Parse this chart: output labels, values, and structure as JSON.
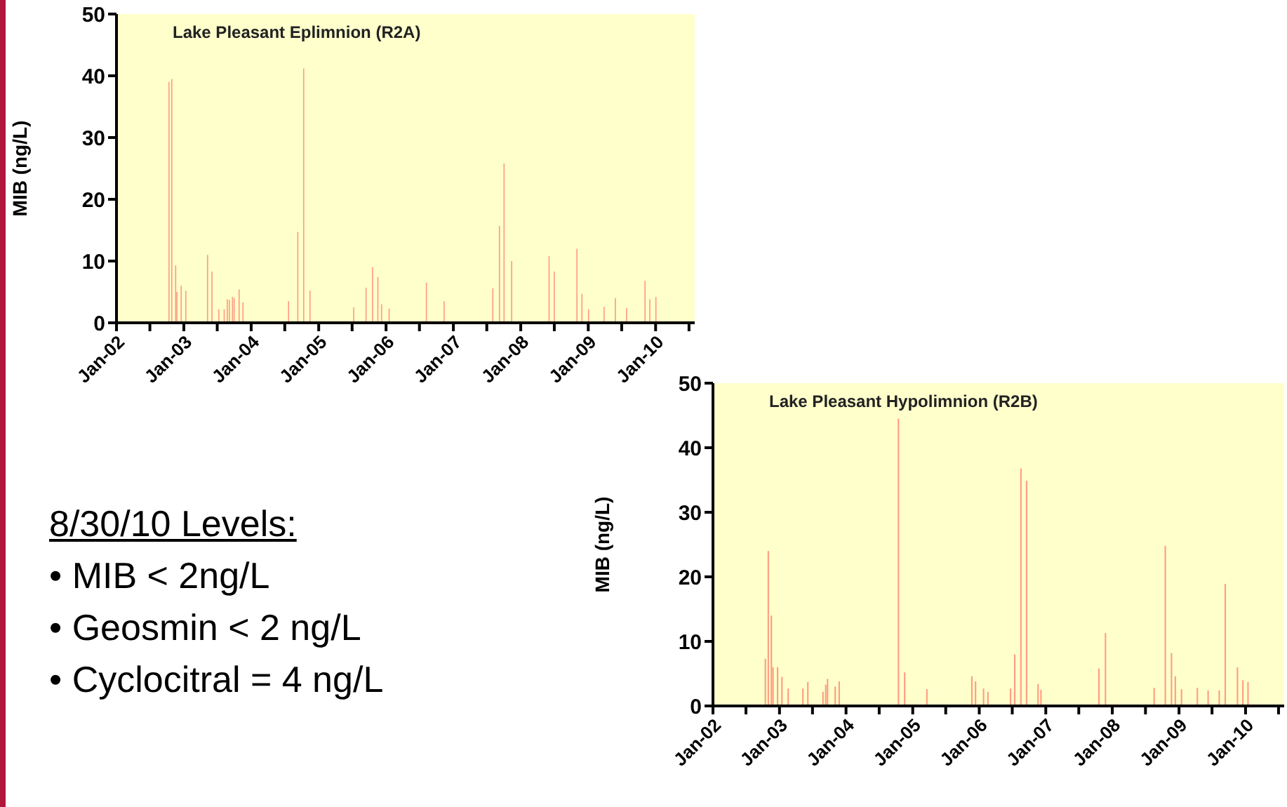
{
  "chart_data": [
    {
      "type": "bar",
      "title": "Lake Pleasant Eplimnion (R2A)",
      "ylabel": "MIB (ng/L)",
      "color": "#ff9c80",
      "x": [
        "2002-10-13",
        "2002-10-28",
        "2002-11-18",
        "2002-11-25",
        "2002-12-18",
        "2003-01-12",
        "2003-05-10",
        "2003-06-03",
        "2003-07-10",
        "2003-08-08",
        "2003-08-25",
        "2003-09-05",
        "2003-09-22",
        "2003-10-01",
        "2003-10-28",
        "2003-11-18",
        "2004-07-22",
        "2004-09-10",
        "2004-10-12",
        "2004-11-15",
        "2005-07-10",
        "2005-09-15",
        "2005-10-20",
        "2005-11-18",
        "2005-12-08",
        "2006-01-18",
        "2006-08-08",
        "2006-11-12",
        "2007-08-03",
        "2007-09-08",
        "2007-10-03",
        "2007-11-13",
        "2008-06-03",
        "2008-07-01",
        "2008-11-01",
        "2008-11-28",
        "2009-01-03",
        "2009-03-28",
        "2009-05-28",
        "2009-07-28",
        "2009-11-05",
        "2009-12-01",
        "2010-01-03"
      ],
      "values": [
        39,
        39.5,
        9.3,
        5,
        6,
        5.2,
        11,
        8.3,
        2.2,
        2.2,
        3.8,
        3.7,
        4.2,
        4,
        5.4,
        3.3,
        3.5,
        14.7,
        41.2,
        5.2,
        2.5,
        5.7,
        9,
        7.4,
        3,
        2.3,
        6.5,
        3.5,
        5.6,
        15.7,
        25.8,
        10,
        10.8,
        8.3,
        12,
        4.7,
        2.2,
        2.6,
        4,
        2.4,
        6.8,
        3.8,
        4.2
      ],
      "xlim": [
        "2002-01",
        "2010-08"
      ],
      "xticks": [
        {
          "value": "2002-01",
          "label": "Jan-02"
        },
        {
          "value": "2002-07",
          "label": null
        },
        {
          "value": "2003-01",
          "label": "Jan-03"
        },
        {
          "value": "2003-07",
          "label": null
        },
        {
          "value": "2004-01",
          "label": "Jan-04"
        },
        {
          "value": "2004-07",
          "label": null
        },
        {
          "value": "2005-01",
          "label": "Jan-05"
        },
        {
          "value": "2005-07",
          "label": null
        },
        {
          "value": "2006-01",
          "label": "Jan-06"
        },
        {
          "value": "2006-07",
          "label": null
        },
        {
          "value": "2007-01",
          "label": "Jan-07"
        },
        {
          "value": "2007-07",
          "label": null
        },
        {
          "value": "2008-01",
          "label": "Jan-08"
        },
        {
          "value": "2008-07",
          "label": null
        },
        {
          "value": "2009-01",
          "label": "Jan-09"
        },
        {
          "value": "2009-07",
          "label": null
        },
        {
          "value": "2010-01",
          "label": "Jan-10"
        },
        {
          "value": "2010-07",
          "label": null
        }
      ],
      "ylim": [
        0,
        50
      ],
      "yticks": [
        0,
        10,
        20,
        30,
        40,
        50
      ]
    },
    {
      "type": "bar",
      "title": "Lake Pleasant Hypolimnion (R2B)",
      "ylabel": "MIB (ng/L)",
      "color": "#ff9c80",
      "x": [
        "2002-10-16",
        "2002-11-01",
        "2002-11-18",
        "2002-11-27",
        "2002-12-22",
        "2003-01-15",
        "2003-02-18",
        "2003-05-10",
        "2003-06-06",
        "2003-08-28",
        "2003-09-12",
        "2003-09-22",
        "2003-11-03",
        "2003-11-25",
        "2004-10-15",
        "2004-11-18",
        "2005-03-20",
        "2005-11-22",
        "2005-12-12",
        "2006-01-25",
        "2006-02-18",
        "2006-06-22",
        "2006-07-15",
        "2006-08-18",
        "2006-09-18",
        "2006-11-20",
        "2006-12-06",
        "2007-10-20",
        "2007-11-25",
        "2008-08-18",
        "2008-10-18",
        "2008-11-21",
        "2008-12-12",
        "2009-01-15",
        "2009-04-12",
        "2009-06-10",
        "2009-08-10",
        "2009-09-12",
        "2009-11-18",
        "2009-12-18",
        "2010-01-15"
      ],
      "values": [
        7.3,
        24,
        14,
        6,
        6,
        4.5,
        2.7,
        2.7,
        3.7,
        2.2,
        3.3,
        4.2,
        3,
        3.8,
        44.5,
        5.2,
        2.6,
        4.6,
        3.8,
        2.7,
        2.2,
        2.7,
        8,
        36.8,
        34.9,
        3.4,
        2.5,
        5.8,
        11.3,
        2.8,
        24.8,
        8.2,
        4.6,
        2.6,
        2.8,
        2.4,
        2.4,
        18.9,
        6,
        4,
        3.7
      ],
      "xlim": [
        "2002-01",
        "2010-08"
      ],
      "xticks": [
        {
          "value": "2002-01",
          "label": "Jan-02"
        },
        {
          "value": "2002-07",
          "label": null
        },
        {
          "value": "2003-01",
          "label": "Jan-03"
        },
        {
          "value": "2003-07",
          "label": null
        },
        {
          "value": "2004-01",
          "label": "Jan-04"
        },
        {
          "value": "2004-07",
          "label": null
        },
        {
          "value": "2005-01",
          "label": "Jan-05"
        },
        {
          "value": "2005-07",
          "label": null
        },
        {
          "value": "2006-01",
          "label": "Jan-06"
        },
        {
          "value": "2006-07",
          "label": null
        },
        {
          "value": "2007-01",
          "label": "Jan-07"
        },
        {
          "value": "2007-07",
          "label": null
        },
        {
          "value": "2008-01",
          "label": "Jan-08"
        },
        {
          "value": "2008-07",
          "label": null
        },
        {
          "value": "2009-01",
          "label": "Jan-09"
        },
        {
          "value": "2009-07",
          "label": null
        },
        {
          "value": "2010-01",
          "label": "Jan-10"
        },
        {
          "value": "2010-07",
          "label": null
        }
      ],
      "ylim": [
        0,
        50
      ],
      "yticks": [
        0,
        10,
        20,
        30,
        40,
        50
      ]
    },
    {
      "type": "other",
      "title": "8/30/10 Levels:",
      "annotations": [
        "• MIB < 2ng/L",
        "• Geosmin < 2 ng/L",
        "• Cyclocitral = 4 ng/L"
      ]
    }
  ]
}
